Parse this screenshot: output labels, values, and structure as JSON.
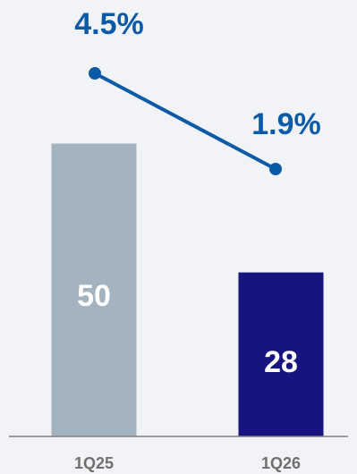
{
  "chart_data": {
    "type": "bar",
    "categories": [
      "1Q25",
      "1Q26"
    ],
    "bar_values": [
      50,
      28
    ],
    "bar_colors": [
      "#a3b3bf",
      "#16157f"
    ],
    "bar_label_colors": [
      "#ffffff",
      "#ffffff"
    ],
    "line_values": [
      4.5,
      1.9
    ],
    "line_labels": [
      "4.5%",
      "1.9%"
    ],
    "line_color": "#0b5aa8",
    "axis_color": "#7f7f7f",
    "category_label_color": "#6f6f6f",
    "bar_ylim": [
      0,
      60
    ],
    "line_ylim": [
      0,
      10
    ],
    "title": "",
    "xlabel": "",
    "ylabel": ""
  }
}
